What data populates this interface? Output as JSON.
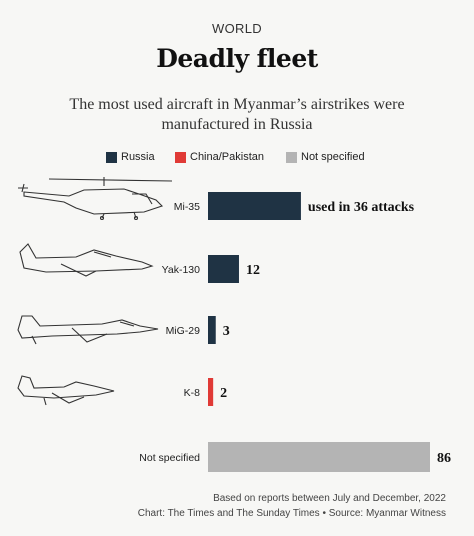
{
  "header": {
    "section": "WORLD",
    "title": "Deadly fleet",
    "subtitle": "The most used aircraft in Myanmar’s airstrikes were manufactured in Russia"
  },
  "legend": [
    {
      "name": "Russia",
      "color": "#1f3344"
    },
    {
      "name": "China/Pakistan",
      "color": "#e03a36"
    },
    {
      "name": "Not specified",
      "color": "#b4b4b4"
    }
  ],
  "chart_data": {
    "type": "bar",
    "orientation": "horizontal",
    "categories": [
      "Mi-35",
      "Yak-130",
      "MiG-29",
      "K-8",
      "Not specified"
    ],
    "values": [
      36,
      12,
      3,
      2,
      86
    ],
    "value_labels": [
      "used in 36 attacks",
      "12",
      "3",
      "2",
      "86"
    ],
    "origin": [
      "Russia",
      "Russia",
      "Russia",
      "China/Pakistan",
      "Not specified"
    ],
    "colors": [
      "#1f3344",
      "#1f3344",
      "#1f3344",
      "#e03a36",
      "#b4b4b4"
    ],
    "title": "Deadly fleet",
    "xlim": [
      0,
      86
    ]
  },
  "icons": [
    "helicopter-icon",
    "jet-trainer-icon",
    "fighter-jet-icon",
    "light-trainer-icon"
  ],
  "footer": {
    "note": "Based on reports between July and December, 2022",
    "credit": "Chart: The Times and The Sunday Times • Source: Myanmar Witness"
  }
}
